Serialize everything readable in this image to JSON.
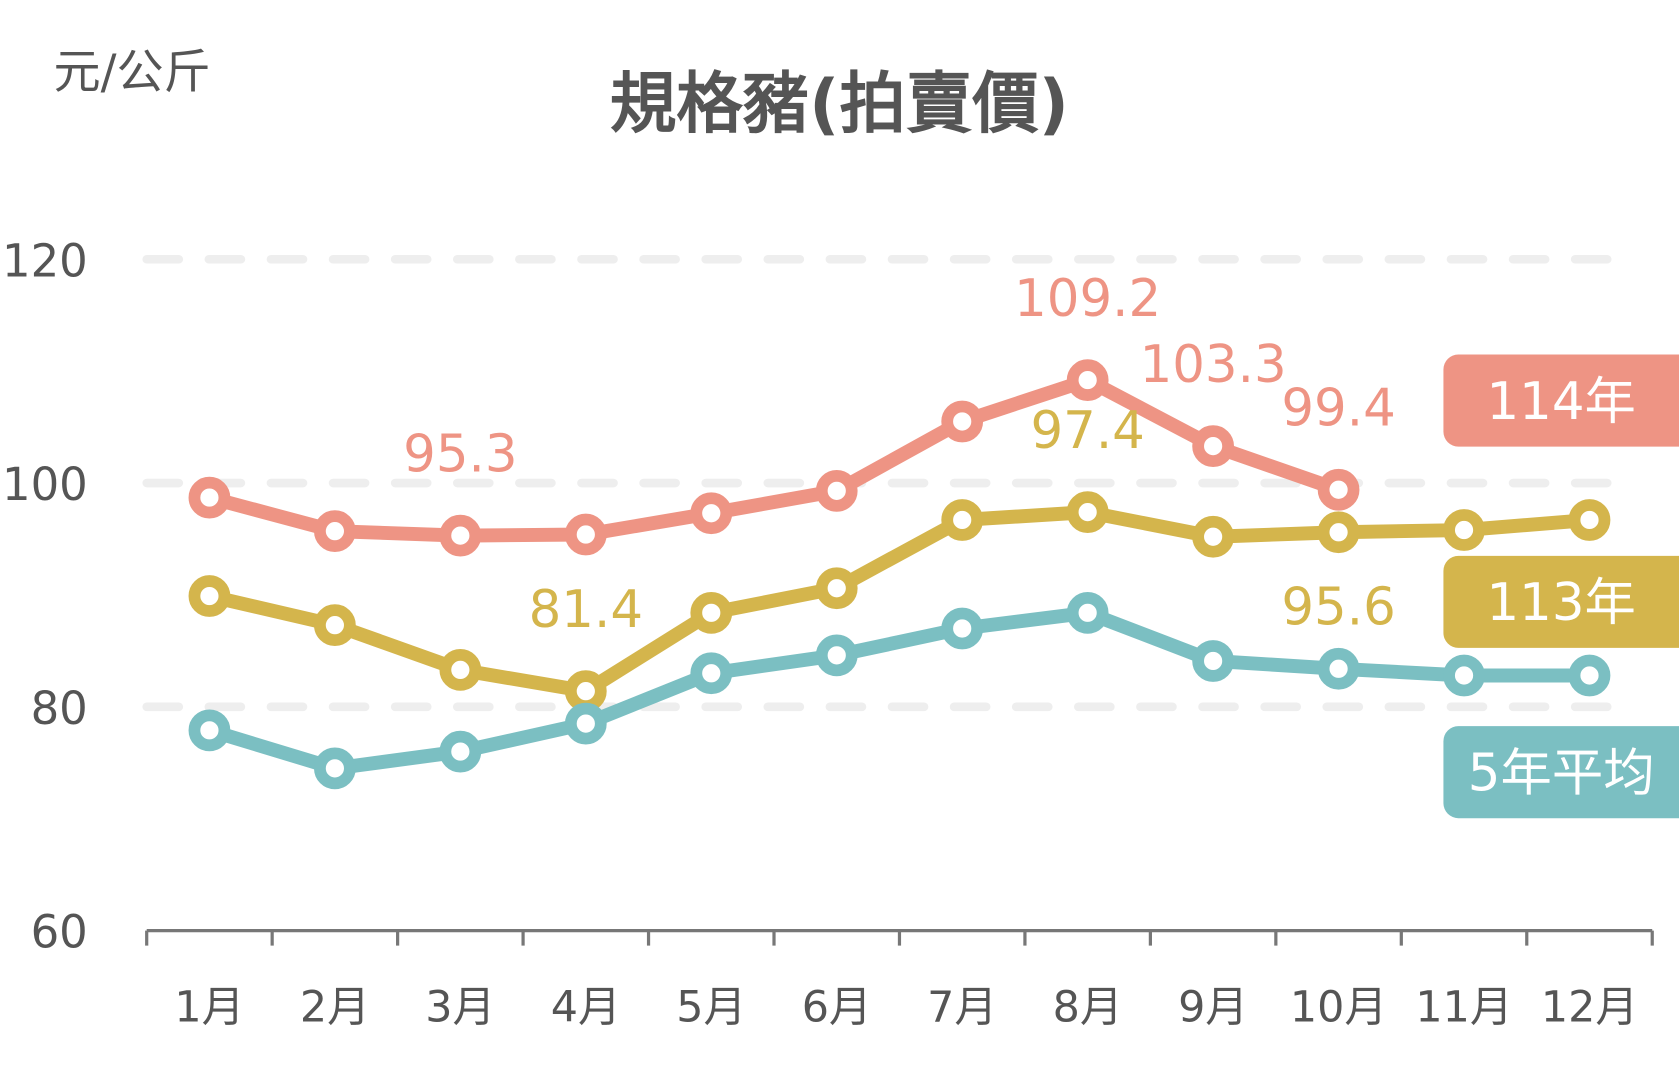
{
  "chart_data": {
    "type": "line",
    "title": "規格豬(拍賣價)",
    "ylabel": "元/公斤",
    "xlabel": "",
    "ylim": [
      60,
      120
    ],
    "yticks": [
      60,
      80,
      100,
      120
    ],
    "grid": true,
    "legend_placement": "right",
    "categories": [
      "1月",
      "2月",
      "3月",
      "4月",
      "5月",
      "6月",
      "7月",
      "8月",
      "9月",
      "10月",
      "11月",
      "12月"
    ],
    "series": [
      {
        "name": "114年",
        "color": "#EE9484",
        "values": [
          98.7,
          95.7,
          95.3,
          95.4,
          97.3,
          99.3,
          105.5,
          109.2,
          103.3,
          99.4,
          null,
          null
        ],
        "labels": [
          {
            "index": 2,
            "text": "95.3",
            "pos": "above"
          },
          {
            "index": 7,
            "text": "109.2",
            "pos": "above"
          },
          {
            "index": 8,
            "text": "103.3",
            "pos": "above"
          },
          {
            "index": 9,
            "text": "99.4",
            "pos": "above"
          }
        ]
      },
      {
        "name": "113年",
        "color": "#D4B54C",
        "values": [
          89.9,
          87.3,
          83.3,
          81.4,
          88.4,
          90.6,
          96.7,
          97.4,
          95.2,
          95.6,
          95.8,
          96.7
        ],
        "labels": [
          {
            "index": 3,
            "text": "81.4",
            "pos": "above"
          },
          {
            "index": 7,
            "text": "97.4",
            "pos": "above"
          },
          {
            "index": 9,
            "text": "95.6",
            "pos": "below"
          }
        ]
      },
      {
        "name": "5年平均",
        "color": "#7BBFC2",
        "values": [
          77.9,
          74.5,
          76.0,
          78.5,
          83.0,
          84.6,
          87.0,
          88.4,
          84.1,
          83.4,
          82.8,
          82.8
        ],
        "labels": []
      }
    ]
  },
  "colors": {
    "text": "#555555",
    "grid": "#EEEEEE",
    "axis": "#777777"
  }
}
